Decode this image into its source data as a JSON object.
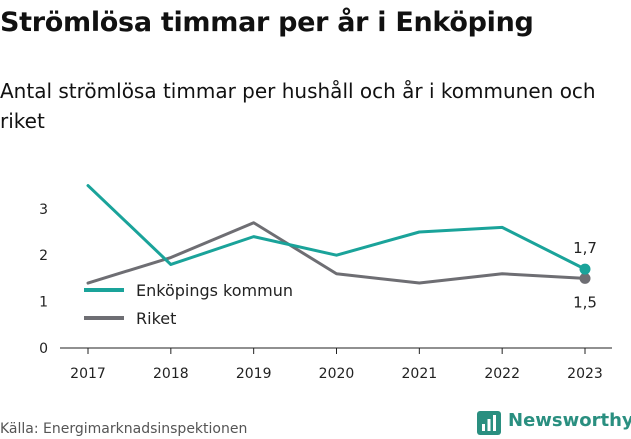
{
  "chart_data": {
    "type": "line",
    "title": "Strömlösa timmar per år i Enköping",
    "subtitle": "Antal strömlösa timmar per hushåll och år i kommunen och riket",
    "x": [
      "2017",
      "2018",
      "2019",
      "2020",
      "2021",
      "2022",
      "2023"
    ],
    "series": [
      {
        "name": "Enköpings kommun",
        "color": "#1aa39a",
        "values": [
          3.5,
          1.8,
          2.4,
          2.0,
          2.5,
          2.6,
          1.7
        ],
        "end_label": "1,7"
      },
      {
        "name": "Riket",
        "color": "#6e6e73",
        "values": [
          1.4,
          1.95,
          2.7,
          1.6,
          1.4,
          1.6,
          1.5
        ],
        "end_label": "1,5"
      }
    ],
    "yticks": [
      "0",
      "1",
      "2",
      "3"
    ],
    "ylim": [
      0,
      3.5
    ],
    "grid": false,
    "legend_position": "inside-left"
  },
  "footer": {
    "source": "Källa: Energimarknadsinspektionen",
    "logo_text": "Newsworthy"
  }
}
